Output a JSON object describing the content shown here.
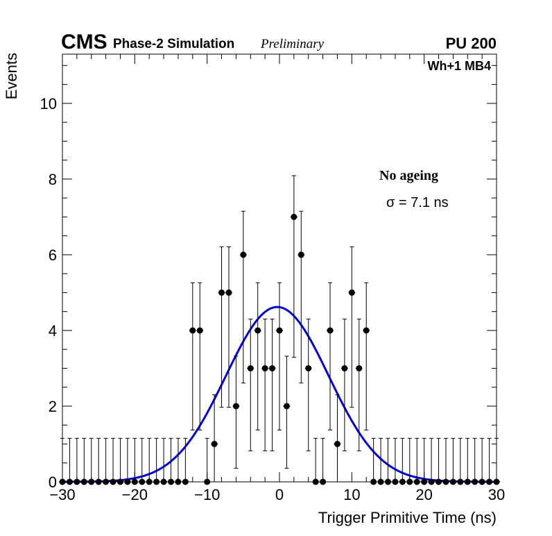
{
  "header": {
    "experiment": "CMS",
    "subtitle": "Phase-2 Simulation",
    "status": "Preliminary",
    "pileup": "PU 200"
  },
  "annotations": {
    "station": "Wh+1 MB4",
    "condition": "No ageing",
    "sigma": "σ = 7.1 ns"
  },
  "chart_data": {
    "type": "scatter",
    "title": "",
    "xlabel": "Trigger Primitive Time (ns)",
    "ylabel": "Events",
    "xlim": [
      -30,
      30
    ],
    "ylim": [
      0,
      11.3
    ],
    "x_ticks": [
      -30,
      -20,
      -10,
      0,
      10,
      20,
      30
    ],
    "x_tick_labels": [
      "−30",
      "−20",
      "−10",
      "0",
      "10",
      "20",
      "30"
    ],
    "y_ticks": [
      0,
      2,
      4,
      6,
      8,
      10
    ],
    "y_tick_labels": [
      "0",
      "2",
      "4",
      "6",
      "8",
      "10"
    ],
    "series": [
      {
        "name": "data",
        "kind": "points_with_poisson_errors",
        "x": [
          -30,
          -29,
          -28,
          -27,
          -26,
          -25,
          -24,
          -23,
          -22,
          -21,
          -20,
          -19,
          -18,
          -17,
          -16,
          -15,
          -14,
          -13,
          -12,
          -11,
          -10,
          -9,
          -8,
          -7,
          -6,
          -5,
          -4,
          -3,
          -2,
          -1,
          0,
          1,
          2,
          3,
          4,
          5,
          6,
          7,
          8,
          9,
          10,
          11,
          12,
          13,
          14,
          15,
          16,
          17,
          18,
          19,
          20,
          21,
          22,
          23,
          24,
          25,
          26,
          27,
          28,
          29,
          30
        ],
        "y": [
          0,
          0,
          0,
          0,
          0,
          0,
          0,
          0,
          0,
          0,
          0,
          0,
          0,
          0,
          0,
          0,
          0,
          0,
          4,
          4,
          0,
          1,
          5,
          5,
          2,
          6,
          3,
          4,
          3,
          3,
          4,
          2,
          7,
          6,
          3,
          0,
          0,
          4,
          1,
          3,
          5,
          3,
          4,
          0,
          0,
          0,
          0,
          0,
          0,
          0,
          0,
          0,
          0,
          0,
          0,
          0,
          0,
          0,
          0,
          0,
          0
        ]
      },
      {
        "name": "gaussian fit",
        "kind": "curve",
        "color": "#0000dd",
        "amplitude": 4.62,
        "mean": -0.3,
        "sigma": 7.1
      }
    ]
  }
}
